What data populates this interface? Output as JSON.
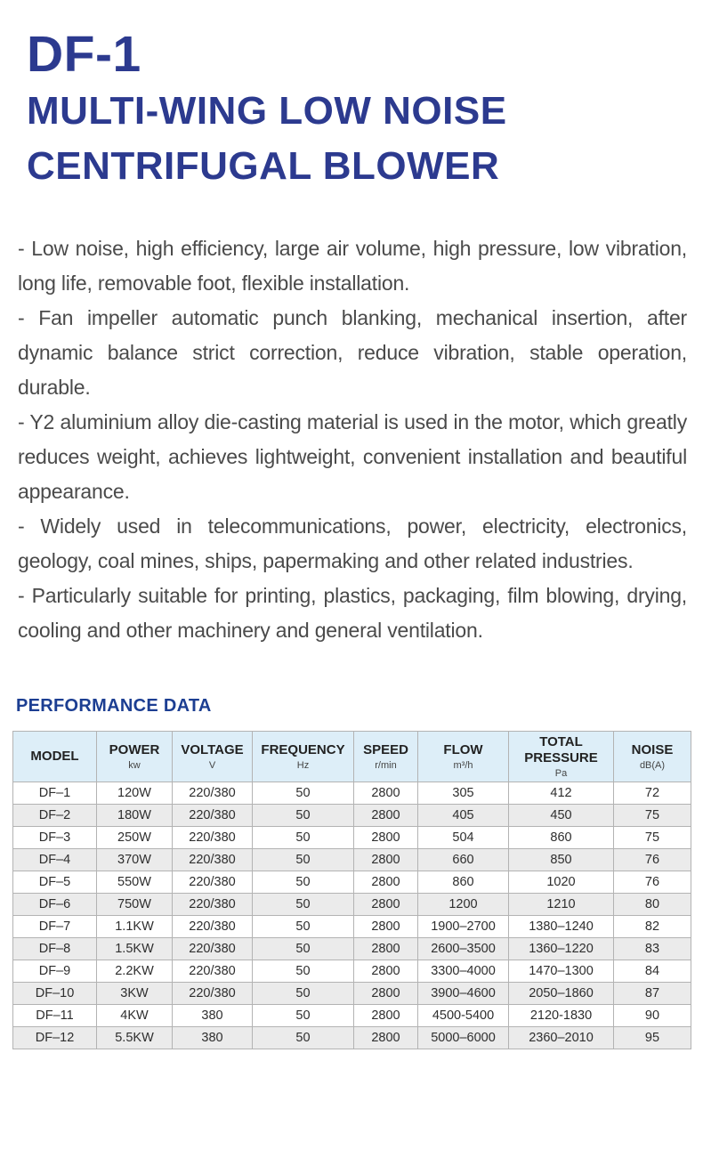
{
  "title": {
    "product_code": "DF-1",
    "line1": "MULTI-WING LOW NOISE",
    "line2": "CENTRIFUGAL BLOWER"
  },
  "features": [
    "- Low noise, high efficiency, large air volume, high pressure, low vibration, long life, removable foot, flexible installation.",
    "- Fan impeller automatic punch blanking, mechanical insertion, after dynamic balance strict correction, reduce vibration, stable operation, durable.",
    "- Y2 aluminium alloy die-casting material is used in the motor, which greatly reduces weight, achieves lightweight, convenient installation and beautiful appearance.",
    "- Widely used in telecommunications, power, electricity, electronics, geology, coal mines, ships, papermaking and other related industries.",
    "- Particularly suitable for printing, plastics, packaging, film blowing, drying, cooling and other machinery and general ventilation."
  ],
  "performance": {
    "heading": "PERFORMANCE DATA",
    "table": {
      "columns": [
        {
          "label": "MODEL",
          "unit": ""
        },
        {
          "label": "POWER",
          "unit": "kw"
        },
        {
          "label": "VOLTAGE",
          "unit": "V"
        },
        {
          "label": "FREQUENCY",
          "unit": "Hz"
        },
        {
          "label": "SPEED",
          "unit": "r/min"
        },
        {
          "label": "FLOW",
          "unit": "m³/h"
        },
        {
          "label": "TOTAL PRESSURE",
          "unit": "Pa"
        },
        {
          "label": "NOISE",
          "unit": "dB(A)"
        }
      ],
      "rows": [
        [
          "DF–1",
          "120W",
          "220/380",
          "50",
          "2800",
          "305",
          "412",
          "72"
        ],
        [
          "DF–2",
          "180W",
          "220/380",
          "50",
          "2800",
          "405",
          "450",
          "75"
        ],
        [
          "DF–3",
          "250W",
          "220/380",
          "50",
          "2800",
          "504",
          "860",
          "75"
        ],
        [
          "DF–4",
          "370W",
          "220/380",
          "50",
          "2800",
          "660",
          "850",
          "76"
        ],
        [
          "DF–5",
          "550W",
          "220/380",
          "50",
          "2800",
          "860",
          "1020",
          "76"
        ],
        [
          "DF–6",
          "750W",
          "220/380",
          "50",
          "2800",
          "1200",
          "1210",
          "80"
        ],
        [
          "DF–7",
          "1.1KW",
          "220/380",
          "50",
          "2800",
          "1900–2700",
          "1380–1240",
          "82"
        ],
        [
          "DF–8",
          "1.5KW",
          "220/380",
          "50",
          "2800",
          "2600–3500",
          "1360–1220",
          "83"
        ],
        [
          "DF–9",
          "2.2KW",
          "220/380",
          "50",
          "2800",
          "3300–4000",
          "1470–1300",
          "84"
        ],
        [
          "DF–10",
          "3KW",
          "220/380",
          "50",
          "2800",
          "3900–4600",
          "2050–1860",
          "87"
        ],
        [
          "DF–11",
          "4KW",
          "380",
          "50",
          "2800",
          "4500-5400",
          "2120-1830",
          "90"
        ],
        [
          "DF–12",
          "5.5KW",
          "380",
          "50",
          "2800",
          "5000–6000",
          "2360–2010",
          "95"
        ]
      ]
    }
  },
  "colors": {
    "title_navy": "#2c3a8f",
    "heading_blue": "#1c3e92",
    "body_text": "#4a4a4a",
    "table_header_bg": "#ddeef8",
    "table_alt_row": "#ebebeb",
    "table_border": "#b3b3b3"
  }
}
